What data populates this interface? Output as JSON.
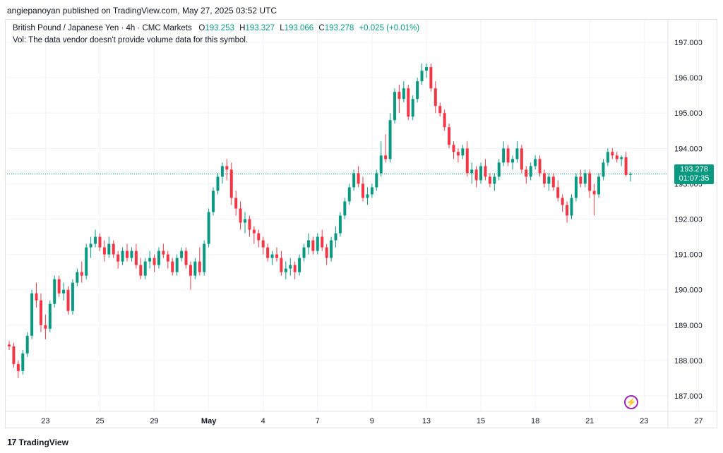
{
  "header": {
    "published_line": "angiepanoyan published on TradingView.com, May 27, 2025 03:52 UTC"
  },
  "legend": {
    "symbol_line": "British Pound / Japanese Yen · 4h · CMC Markets",
    "open_label": "O",
    "open": "193.253",
    "high_label": "H",
    "high": "193.327",
    "low_label": "L",
    "low": "193.066",
    "close_label": "C",
    "close": "193.278",
    "change": "+0.025 (+0.01%)",
    "volume_note": "Vol: The data vendor doesn't provide volume data for this symbol."
  },
  "price_tag": {
    "price": "193.278",
    "countdown": "01:07:35"
  },
  "footer": {
    "brand": "TradingView"
  },
  "colors": {
    "up": "#089981",
    "down": "#f23645",
    "last_price_line": "#089981",
    "grid": "#f0f3fa",
    "flash_icon": "#9c27b0"
  },
  "icons": {
    "flash_icon": "lightning-bolt-icon",
    "tv_logo": "tradingview-logo-icon"
  },
  "chart_data": {
    "type": "candlestick",
    "title": "British Pound / Japanese Yen · 4h · CMC Markets",
    "ylim": [
      186.6,
      197.6
    ],
    "y_ticks": [
      "197.000",
      "196.000",
      "195.000",
      "194.000",
      "193.000",
      "192.000",
      "191.000",
      "190.000",
      "189.000",
      "188.000",
      "187.000"
    ],
    "x_ticks": [
      {
        "label": "23",
        "index": 8
      },
      {
        "label": "25",
        "index": 20
      },
      {
        "label": "29",
        "index": 32
      },
      {
        "label": "May",
        "index": 44
      },
      {
        "label": "4",
        "index": 56
      },
      {
        "label": "7",
        "index": 68
      },
      {
        "label": "9",
        "index": 80
      },
      {
        "label": "13",
        "index": 92
      },
      {
        "label": "15",
        "index": 104
      },
      {
        "label": "18",
        "index": 116
      },
      {
        "label": "21",
        "index": 128
      },
      {
        "label": "23",
        "index": 140
      },
      {
        "label": "27",
        "index": 152
      }
    ],
    "last_price": 193.278,
    "grid": true,
    "candles": [
      [
        188.45,
        188.55,
        188.3,
        188.4
      ],
      [
        188.4,
        188.5,
        187.8,
        187.9
      ],
      [
        187.9,
        188.0,
        187.5,
        187.7
      ],
      [
        187.7,
        188.3,
        187.6,
        188.2
      ],
      [
        188.2,
        188.8,
        188.1,
        188.7
      ],
      [
        188.7,
        190.0,
        188.6,
        189.9
      ],
      [
        189.9,
        190.2,
        189.5,
        189.7
      ],
      [
        189.7,
        189.9,
        188.8,
        189.0
      ],
      [
        189.0,
        189.3,
        188.6,
        188.9
      ],
      [
        188.9,
        189.7,
        188.8,
        189.6
      ],
      [
        189.6,
        190.4,
        189.5,
        190.3
      ],
      [
        190.3,
        190.4,
        189.8,
        189.9
      ],
      [
        189.9,
        190.2,
        189.7,
        190.0
      ],
      [
        190.0,
        190.1,
        189.3,
        189.4
      ],
      [
        189.4,
        190.3,
        189.3,
        190.2
      ],
      [
        190.2,
        190.6,
        190.1,
        190.5
      ],
      [
        190.5,
        190.8,
        190.2,
        190.4
      ],
      [
        190.4,
        191.3,
        190.3,
        191.2
      ],
      [
        191.2,
        191.5,
        190.9,
        191.3
      ],
      [
        191.3,
        191.7,
        191.2,
        191.5
      ],
      [
        191.5,
        191.6,
        191.1,
        191.2
      ],
      [
        191.2,
        191.4,
        190.8,
        191.0
      ],
      [
        191.0,
        191.5,
        190.9,
        191.3
      ],
      [
        191.3,
        191.4,
        190.9,
        191.0
      ],
      [
        191.0,
        191.1,
        190.6,
        190.8
      ],
      [
        190.8,
        191.2,
        190.7,
        191.1
      ],
      [
        191.1,
        191.3,
        190.8,
        190.9
      ],
      [
        190.9,
        191.2,
        190.8,
        191.1
      ],
      [
        191.1,
        191.3,
        190.6,
        190.7
      ],
      [
        190.7,
        190.9,
        190.3,
        190.4
      ],
      [
        190.4,
        190.9,
        190.3,
        190.8
      ],
      [
        190.8,
        191.1,
        190.6,
        190.9
      ],
      [
        190.9,
        191.0,
        190.5,
        190.7
      ],
      [
        190.7,
        191.2,
        190.6,
        191.1
      ],
      [
        191.1,
        191.3,
        190.9,
        191.0
      ],
      [
        191.0,
        191.1,
        190.6,
        190.8
      ],
      [
        190.8,
        190.9,
        190.4,
        190.5
      ],
      [
        190.5,
        191.0,
        190.4,
        190.9
      ],
      [
        190.9,
        191.2,
        190.8,
        191.1
      ],
      [
        191.1,
        191.2,
        190.6,
        190.7
      ],
      [
        190.7,
        190.8,
        190.0,
        190.4
      ],
      [
        190.4,
        190.9,
        190.3,
        190.8
      ],
      [
        190.8,
        191.2,
        190.4,
        190.5
      ],
      [
        190.5,
        191.4,
        190.4,
        191.3
      ],
      [
        191.3,
        192.3,
        191.2,
        192.2
      ],
      [
        192.2,
        192.9,
        192.1,
        192.8
      ],
      [
        192.8,
        193.3,
        192.7,
        193.2
      ],
      [
        193.2,
        193.6,
        193.0,
        193.5
      ],
      [
        193.5,
        193.7,
        193.1,
        193.4
      ],
      [
        193.4,
        193.6,
        192.4,
        192.6
      ],
      [
        192.6,
        192.8,
        192.1,
        192.3
      ],
      [
        192.3,
        192.5,
        191.7,
        191.9
      ],
      [
        191.9,
        192.2,
        191.6,
        192.0
      ],
      [
        192.0,
        192.1,
        191.5,
        191.7
      ],
      [
        191.7,
        191.8,
        191.3,
        191.6
      ],
      [
        191.6,
        191.7,
        191.2,
        191.4
      ],
      [
        191.4,
        191.5,
        191.0,
        191.2
      ],
      [
        191.2,
        191.3,
        190.8,
        190.9
      ],
      [
        190.9,
        191.1,
        190.7,
        191.0
      ],
      [
        191.0,
        191.2,
        190.8,
        190.9
      ],
      [
        190.9,
        191.1,
        190.4,
        190.5
      ],
      [
        190.5,
        190.8,
        190.3,
        190.6
      ],
      [
        190.6,
        190.9,
        190.4,
        190.7
      ],
      [
        190.7,
        190.8,
        190.3,
        190.5
      ],
      [
        190.5,
        191.0,
        190.4,
        190.9
      ],
      [
        190.9,
        191.3,
        190.8,
        191.2
      ],
      [
        191.2,
        191.6,
        191.0,
        191.4
      ],
      [
        191.4,
        191.5,
        191.0,
        191.1
      ],
      [
        191.1,
        191.6,
        191.0,
        191.5
      ],
      [
        191.5,
        191.7,
        191.1,
        191.2
      ],
      [
        191.2,
        191.3,
        190.7,
        190.9
      ],
      [
        190.9,
        191.5,
        190.8,
        191.4
      ],
      [
        191.4,
        191.8,
        191.2,
        191.6
      ],
      [
        191.6,
        192.2,
        191.5,
        192.1
      ],
      [
        192.1,
        192.6,
        192.0,
        192.5
      ],
      [
        192.5,
        193.0,
        192.4,
        192.9
      ],
      [
        192.9,
        193.4,
        192.8,
        193.3
      ],
      [
        193.3,
        193.5,
        192.9,
        193.0
      ],
      [
        193.0,
        193.2,
        192.5,
        192.6
      ],
      [
        192.6,
        192.9,
        192.4,
        192.7
      ],
      [
        192.7,
        193.0,
        192.6,
        192.9
      ],
      [
        192.9,
        193.4,
        192.8,
        193.3
      ],
      [
        193.3,
        194.2,
        193.2,
        193.8
      ],
      [
        193.8,
        194.4,
        193.6,
        193.7
      ],
      [
        193.7,
        195.0,
        193.6,
        194.8
      ],
      [
        194.8,
        195.7,
        194.7,
        195.6
      ],
      [
        195.6,
        195.8,
        195.0,
        195.4
      ],
      [
        195.4,
        195.9,
        195.3,
        195.7
      ],
      [
        195.7,
        195.8,
        194.8,
        194.9
      ],
      [
        194.9,
        195.5,
        194.8,
        195.4
      ],
      [
        195.4,
        196.0,
        195.3,
        195.9
      ],
      [
        195.9,
        196.4,
        195.8,
        196.2
      ],
      [
        196.2,
        196.4,
        196.0,
        196.3
      ],
      [
        196.3,
        196.4,
        195.6,
        195.7
      ],
      [
        195.7,
        195.9,
        195.0,
        195.2
      ],
      [
        195.2,
        195.3,
        194.9,
        195.0
      ],
      [
        195.0,
        195.1,
        194.5,
        194.6
      ],
      [
        194.6,
        194.7,
        194.0,
        194.1
      ],
      [
        194.1,
        194.2,
        193.7,
        193.9
      ],
      [
        193.9,
        194.0,
        193.6,
        193.8
      ],
      [
        193.8,
        194.1,
        193.7,
        194.0
      ],
      [
        194.0,
        194.2,
        193.2,
        193.3
      ],
      [
        193.3,
        193.6,
        193.0,
        193.4
      ],
      [
        193.4,
        193.5,
        192.9,
        193.1
      ],
      [
        193.1,
        193.6,
        193.0,
        193.5
      ],
      [
        193.5,
        193.7,
        193.1,
        193.2
      ],
      [
        193.2,
        193.3,
        192.9,
        193.0
      ],
      [
        193.0,
        193.3,
        192.8,
        193.2
      ],
      [
        193.2,
        193.7,
        193.1,
        193.6
      ],
      [
        193.6,
        194.2,
        193.5,
        194.0
      ],
      [
        194.0,
        194.1,
        193.5,
        193.6
      ],
      [
        193.6,
        193.8,
        193.4,
        193.7
      ],
      [
        193.7,
        194.2,
        193.6,
        194.0
      ],
      [
        194.0,
        194.1,
        193.3,
        193.4
      ],
      [
        193.4,
        193.5,
        193.0,
        193.2
      ],
      [
        193.2,
        193.6,
        193.1,
        193.5
      ],
      [
        193.5,
        193.8,
        193.4,
        193.7
      ],
      [
        193.7,
        193.8,
        193.2,
        193.3
      ],
      [
        193.3,
        193.4,
        192.9,
        193.0
      ],
      [
        193.0,
        193.3,
        192.8,
        193.2
      ],
      [
        193.2,
        193.3,
        192.8,
        192.9
      ],
      [
        192.9,
        193.1,
        192.5,
        192.6
      ],
      [
        192.6,
        192.7,
        192.2,
        192.4
      ],
      [
        192.4,
        192.5,
        191.9,
        192.1
      ],
      [
        192.1,
        192.7,
        192.0,
        192.6
      ],
      [
        192.6,
        193.3,
        192.5,
        193.2
      ],
      [
        193.2,
        193.4,
        192.9,
        193.0
      ],
      [
        193.0,
        193.4,
        192.9,
        193.3
      ],
      [
        193.3,
        193.4,
        192.6,
        192.8
      ],
      [
        192.8,
        193.0,
        192.1,
        192.7
      ],
      [
        192.7,
        193.3,
        192.6,
        193.2
      ],
      [
        193.2,
        193.7,
        193.1,
        193.6
      ],
      [
        193.6,
        194.0,
        193.5,
        193.9
      ],
      [
        193.9,
        194.0,
        193.7,
        193.8
      ],
      [
        193.8,
        193.9,
        193.6,
        193.7
      ],
      [
        193.7,
        193.8,
        193.5,
        193.75
      ],
      [
        193.75,
        193.9,
        193.2,
        193.25
      ],
      [
        193.253,
        193.327,
        193.066,
        193.278
      ]
    ]
  }
}
